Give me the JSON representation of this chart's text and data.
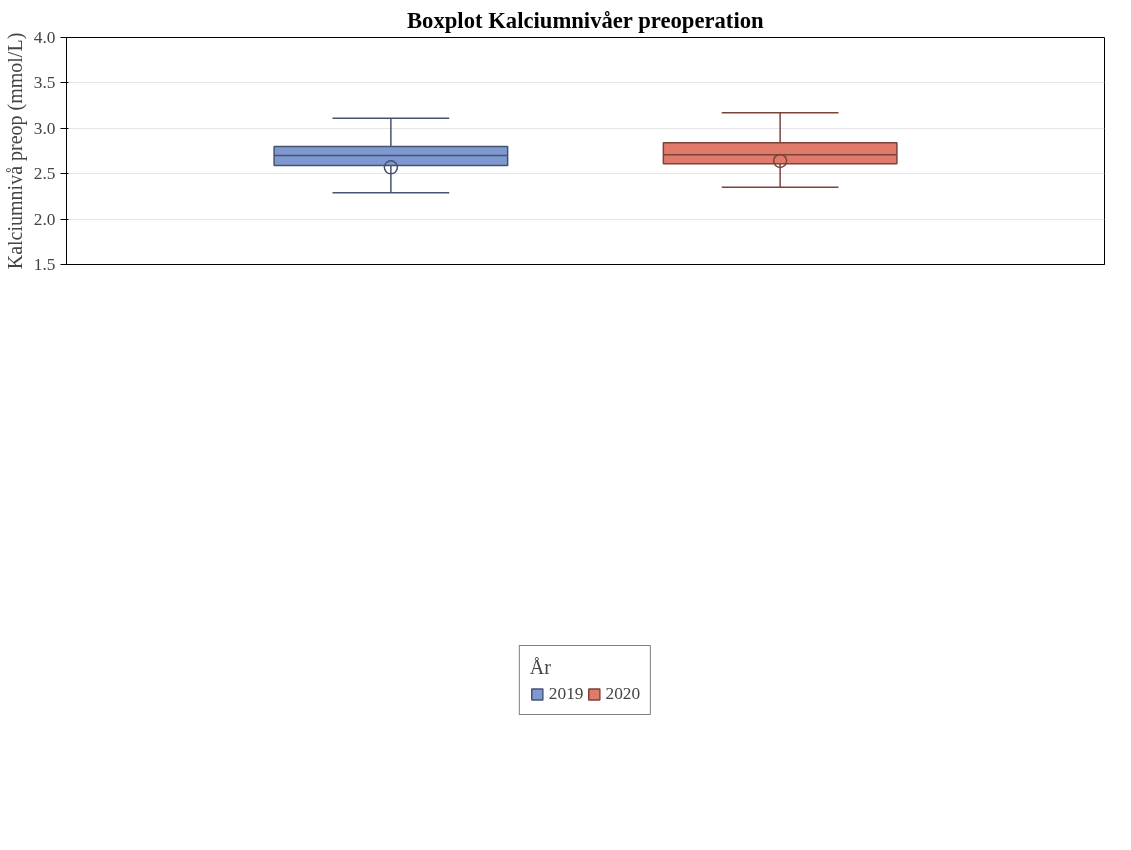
{
  "chart_data": {
    "type": "box",
    "title": "Boxplot Kalciumnivåer preoperation",
    "ylabel": "Kalciumnivå preop (mmol/L)",
    "legend_title": "År",
    "categories": [
      null
    ],
    "ylim": [
      1.5,
      4.0
    ],
    "yticks": [
      1.5,
      {
        "value": 2,
        "label": "2.0"
      },
      2.5,
      {
        "value": 3,
        "label": "3.0"
      },
      3.5,
      {
        "value": 4,
        "label": "4.0"
      }
    ],
    "grid": "y",
    "legend": "bottom",
    "marker": "circle",
    "series": [
      {
        "name": "2019",
        "color": "#7f98d0",
        "boxes": [
          {
            "low": 2.29,
            "q1": 2.59,
            "median": 2.7,
            "q3": 2.8,
            "high": 3.11,
            "mean": 2.57
          }
        ]
      },
      {
        "name": "2020",
        "color": "#e07b6b",
        "boxes": [
          {
            "low": 2.35,
            "q1": 2.61,
            "median": 2.71,
            "q3": 2.84,
            "high": 3.17,
            "mean": 2.64
          }
        ]
      }
    ]
  }
}
